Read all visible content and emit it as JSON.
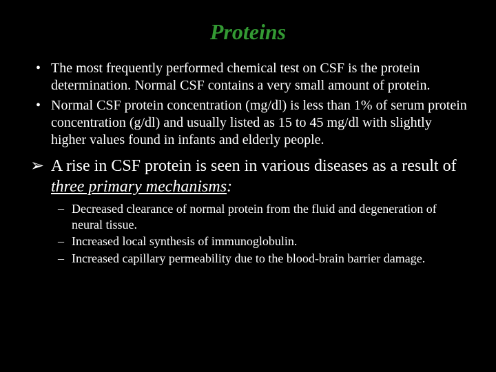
{
  "title": {
    "text": "Proteins",
    "color": "#339933",
    "fontsize": 32
  },
  "body": {
    "color": "#ffffff",
    "bullet_fontsize": 20,
    "arrow_fontsize": 24,
    "sub_fontsize": 18
  },
  "bullets": [
    "The most frequently performed chemical test on CSF is the protein determination. Normal CSF contains a very small amount of protein.",
    "Normal CSF protein concentration (mg/dl) is less than 1% of serum protein concentration (g/dl) and usually listed as 15 to 45 mg/dl with slightly higher values found in infants and elderly people."
  ],
  "arrow_item": {
    "prefix": "A rise in CSF protein is seen in various diseases as a result of ",
    "underlined": "three primary mechanisms",
    "suffix_italic": ":"
  },
  "sub_items": [
    "Decreased clearance of  normal protein from the fluid and degeneration of neural tissue.",
    "Increased local synthesis of  immunoglobulin.",
    "Increased capillary permeability due to the blood-brain barrier damage."
  ],
  "background_color": "#000000"
}
